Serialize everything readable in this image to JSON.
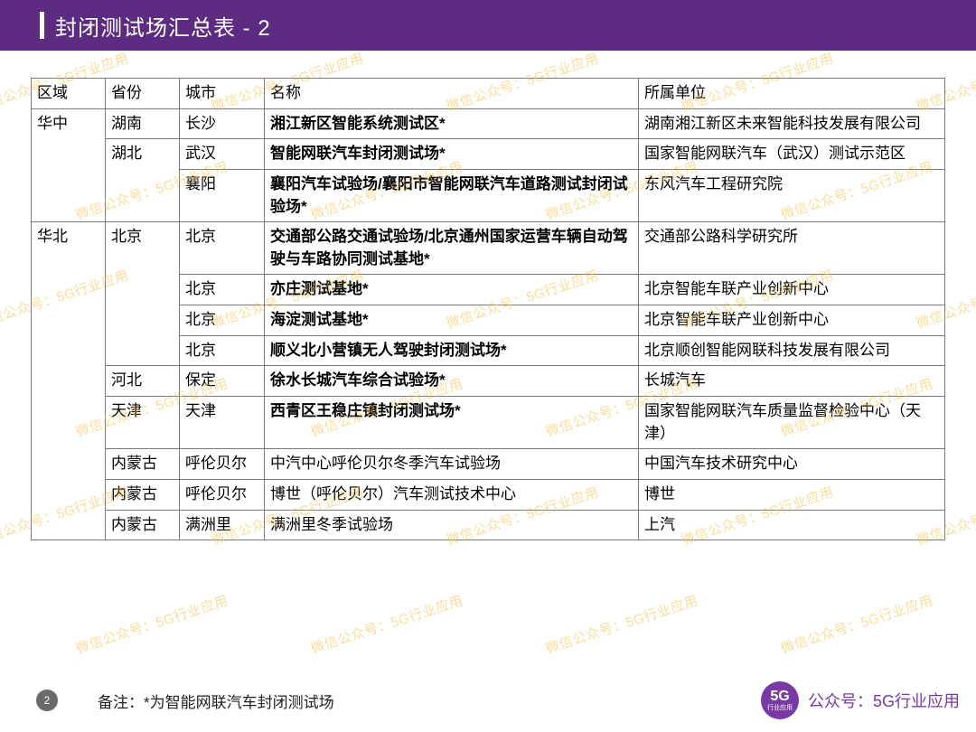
{
  "header": {
    "title": "封闭测试场汇总表 - 2"
  },
  "table": {
    "columns": [
      "区域",
      "省份",
      "城市",
      "名称",
      "所属单位"
    ],
    "rows": [
      {
        "region": "华中",
        "province": "湖南",
        "city": "长沙",
        "name": "湘江新区智能系统测试区*",
        "org": "湖南湘江新区未来智能科技发展有限公司",
        "bold": true
      },
      {
        "region": "",
        "province": "湖北",
        "city": "武汉",
        "name": "智能网联汽车封闭测试场*",
        "org": "国家智能网联汽车（武汉）测试示范区",
        "bold": true
      },
      {
        "region": "",
        "province": "",
        "city": "襄阳",
        "name": "襄阳汽车试验场/襄阳市智能网联汽车道路测试封闭试验场*",
        "org": "东风汽车工程研究院",
        "bold": true
      },
      {
        "region": "华北",
        "province": "北京",
        "city": "北京",
        "name": "交通部公路交通试验场/北京通州国家运营车辆自动驾驶与车路协同测试基地*",
        "org": "交通部公路科学研究所",
        "bold": true
      },
      {
        "region": "",
        "province": "",
        "city": "北京",
        "name": "亦庄测试基地*",
        "org": "北京智能车联产业创新中心",
        "bold": true
      },
      {
        "region": "",
        "province": "",
        "city": "北京",
        "name": "海淀测试基地*",
        "org": "北京智能车联产业创新中心",
        "bold": true
      },
      {
        "region": "",
        "province": "",
        "city": "北京",
        "name": "顺义北小营镇无人驾驶封闭测试场*",
        "org": "北京顺创智能网联科技发展有限公司",
        "bold": true
      },
      {
        "region": "",
        "province": "河北",
        "city": "保定",
        "name": "徐水长城汽车综合试验场*",
        "org": "长城汽车",
        "bold": true
      },
      {
        "region": "",
        "province": "天津",
        "city": "天津",
        "name": "西青区王稳庄镇封闭测试场*",
        "org": "国家智能网联汽车质量监督检验中心（天津）",
        "bold": true
      },
      {
        "region": "",
        "province": "内蒙古",
        "city": "呼伦贝尔",
        "name": "中汽中心呼伦贝尔冬季汽车试验场",
        "org": "中国汽车技术研究中心",
        "bold": false
      },
      {
        "region": "",
        "province": "内蒙古",
        "city": "呼伦贝尔",
        "name": "博世（呼伦贝尔）汽车测试技术中心",
        "org": "博世",
        "bold": false
      },
      {
        "region": "",
        "province": "内蒙古",
        "city": "满洲里",
        "name": "满洲里冬季试验场",
        "org": "上汽",
        "bold": false
      }
    ],
    "rowspans": {
      "region": [
        3,
        0,
        0,
        9,
        0,
        0,
        0,
        0,
        0,
        0,
        0,
        0
      ],
      "province": [
        1,
        2,
        0,
        4,
        0,
        0,
        0,
        1,
        1,
        1,
        1,
        1
      ]
    }
  },
  "footer": {
    "page": "2",
    "note": "备注：*为智能网联汽车封闭测试场",
    "logo_main": "5G",
    "logo_sub": "行业应用",
    "publisher": "公众号：5G行业应用"
  },
  "watermark": {
    "text": "微信公众号：5G行业应用"
  },
  "colors": {
    "header_bg": "#5e2b82",
    "border": "#7a7a7a",
    "watermark": "#f3c24a",
    "accent": "#7a3aa3"
  }
}
